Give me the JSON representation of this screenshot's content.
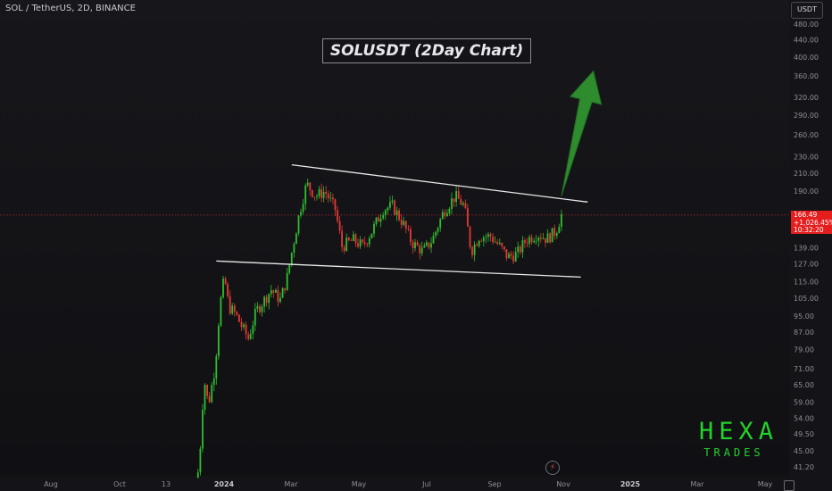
{
  "header": {
    "symbol_line": "SOL / TetherUS, 2D, BINANCE"
  },
  "title": "SOLUSDT (2Day Chart)",
  "currency_button": "USDT",
  "price_tag": {
    "price": "166.49",
    "change": "+1,026.45%",
    "countdown": "10:32:20"
  },
  "logo": {
    "main": "HEXA",
    "sub": "TRADES"
  },
  "flash_icon": "lightning-icon",
  "colors": {
    "bull": "#2fbf2f",
    "bear": "#e53935",
    "trendline": "#e8e8e8",
    "arrow": "#2e8b2e",
    "price_line": "#d32f2f",
    "logo": "#23d22d"
  },
  "chart_data": {
    "type": "candlestick",
    "scale": "log",
    "y_ticks": [
      41.2,
      45.0,
      49.5,
      54.0,
      59.0,
      65.0,
      71.0,
      79.0,
      87.0,
      95.0,
      105.0,
      115.0,
      127.0,
      139.0,
      190.0,
      210.0,
      230.0,
      260.0,
      290.0,
      320.0,
      360.0,
      400.0,
      440.0,
      480.0
    ],
    "x_ticks": [
      "Aug",
      "Oct",
      "13",
      "2024",
      "Mar",
      "May",
      "Jul",
      "Sep",
      "Nov",
      "2025",
      "Mar",
      "May"
    ],
    "last_price": 166.49,
    "price_path": [
      {
        "date": "2023-12-10",
        "price": 40
      },
      {
        "date": "2023-12-13",
        "price": 50
      },
      {
        "date": "2023-12-15",
        "price": 68
      },
      {
        "date": "2023-12-19",
        "price": 58
      },
      {
        "date": "2023-12-25",
        "price": 72
      },
      {
        "date": "2023-12-29",
        "price": 100
      },
      {
        "date": "2024-01-02",
        "price": 118
      },
      {
        "date": "2024-01-06",
        "price": 100
      },
      {
        "date": "2024-01-12",
        "price": 96
      },
      {
        "date": "2024-01-17",
        "price": 90
      },
      {
        "date": "2024-01-23",
        "price": 84
      },
      {
        "date": "2024-01-30",
        "price": 98
      },
      {
        "date": "2024-02-06",
        "price": 104
      },
      {
        "date": "2024-02-12",
        "price": 110
      },
      {
        "date": "2024-02-20",
        "price": 104
      },
      {
        "date": "2024-02-26",
        "price": 118
      },
      {
        "date": "2024-03-02",
        "price": 140
      },
      {
        "date": "2024-03-08",
        "price": 170
      },
      {
        "date": "2024-03-14",
        "price": 198
      },
      {
        "date": "2024-03-22",
        "price": 185
      },
      {
        "date": "2024-03-30",
        "price": 190
      },
      {
        "date": "2024-04-08",
        "price": 172
      },
      {
        "date": "2024-04-14",
        "price": 140
      },
      {
        "date": "2024-04-24",
        "price": 145
      },
      {
        "date": "2024-05-02",
        "price": 140
      },
      {
        "date": "2024-05-10",
        "price": 152
      },
      {
        "date": "2024-05-20",
        "price": 172
      },
      {
        "date": "2024-05-28",
        "price": 175
      },
      {
        "date": "2024-06-06",
        "price": 160
      },
      {
        "date": "2024-06-14",
        "price": 143
      },
      {
        "date": "2024-06-24",
        "price": 136
      },
      {
        "date": "2024-07-02",
        "price": 145
      },
      {
        "date": "2024-07-12",
        "price": 170
      },
      {
        "date": "2024-07-22",
        "price": 185
      },
      {
        "date": "2024-07-30",
        "price": 175
      },
      {
        "date": "2024-08-05",
        "price": 136
      },
      {
        "date": "2024-08-12",
        "price": 148
      },
      {
        "date": "2024-08-22",
        "price": 148
      },
      {
        "date": "2024-08-30",
        "price": 140
      },
      {
        "date": "2024-09-06",
        "price": 132
      },
      {
        "date": "2024-09-14",
        "price": 134
      },
      {
        "date": "2024-09-22",
        "price": 145
      },
      {
        "date": "2024-10-02",
        "price": 150
      },
      {
        "date": "2024-10-10",
        "price": 146
      },
      {
        "date": "2024-10-18",
        "price": 152
      },
      {
        "date": "2024-10-23",
        "price": 166.49
      }
    ],
    "upper_trendline": [
      {
        "date": "2024-03-01",
        "price": 220
      },
      {
        "date": "2024-11-15",
        "price": 179
      }
    ],
    "lower_trendline": [
      {
        "date": "2023-12-26",
        "price": 129
      },
      {
        "date": "2024-11-09",
        "price": 118
      }
    ],
    "arrow": {
      "from": {
        "date": "2024-10-23",
        "price": 185
      },
      "to": {
        "date": "2024-11-20",
        "price": 370
      }
    }
  }
}
